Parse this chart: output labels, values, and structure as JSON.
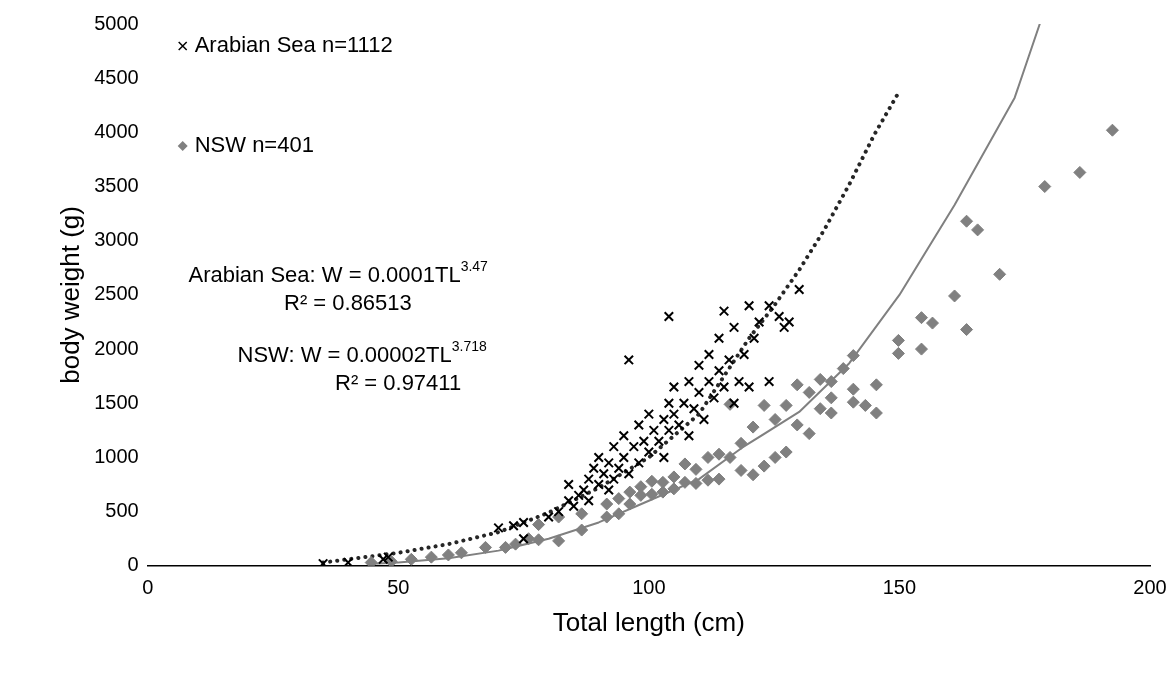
{
  "chart_data": {
    "type": "scatter",
    "xlabel": "Total length (cm)",
    "ylabel": "body weight (g)",
    "xlim": [
      0,
      200
    ],
    "xticks": [
      0,
      50,
      100,
      150,
      200
    ],
    "ylim": [
      0,
      5000
    ],
    "yticks": [
      0,
      500,
      1000,
      1500,
      2000,
      2500,
      3000,
      3500,
      4000,
      4500,
      5000
    ],
    "grid": false,
    "legend": "top left",
    "annotations": [
      "Arabian Sea: W = 0.0001TL$^{3.47}$",
      "R² = 0.86513",
      "NSW: W = 0.00002TL$^{3.718}$",
      "R² = 0.97411"
    ],
    "series": [
      {
        "name": "Arabian Sea n=1112",
        "marker": "cross",
        "color": "#000000",
        "x": [
          35,
          40,
          47,
          48,
          70,
          73,
          75,
          75,
          80,
          82,
          84,
          84,
          85,
          86,
          87,
          88,
          88,
          89,
          90,
          90,
          91,
          92,
          92,
          93,
          93,
          94,
          95,
          95,
          96,
          96,
          97,
          98,
          98,
          99,
          100,
          100,
          101,
          102,
          103,
          103,
          104,
          104,
          105,
          105,
          106,
          107,
          104,
          108,
          108,
          109,
          110,
          110,
          111,
          112,
          112,
          113,
          114,
          114,
          115,
          115,
          116,
          117,
          117,
          118,
          119,
          120,
          120,
          121,
          122,
          124,
          124,
          126,
          127,
          128,
          130
        ],
        "values": [
          20,
          30,
          60,
          80,
          350,
          370,
          400,
          250,
          450,
          500,
          600,
          750,
          550,
          650,
          700,
          800,
          600,
          900,
          750,
          1000,
          850,
          950,
          700,
          1100,
          800,
          900,
          1000,
          1200,
          1900,
          850,
          1100,
          950,
          1300,
          1150,
          1050,
          1400,
          1250,
          1150,
          1350,
          1000,
          1500,
          1250,
          1400,
          1650,
          1300,
          1500,
          2300,
          1200,
          1700,
          1450,
          1600,
          1850,
          1350,
          1700,
          1950,
          1550,
          1800,
          2100,
          1650,
          2350,
          1900,
          1500,
          2200,
          1700,
          1950,
          2400,
          1650,
          2100,
          2250,
          2400,
          1700,
          2300,
          2200,
          2250,
          2550
        ]
      },
      {
        "name": "NSW n=401",
        "marker": "diamond",
        "color": "#808080",
        "x": [
          44.6,
          48.6,
          52.6,
          56.6,
          60,
          62.6,
          67.4,
          71.4,
          73.4,
          76,
          78,
          78,
          82,
          82,
          86.6,
          86.6,
          91.6,
          91.6,
          94,
          94,
          96.2,
          96.2,
          98.4,
          98.4,
          100.6,
          100.6,
          102.8,
          102.8,
          105,
          105,
          107.2,
          107.2,
          109.4,
          109.4,
          111.8,
          111.8,
          114,
          114,
          116.2,
          116.2,
          118.4,
          118.4,
          120.8,
          120.8,
          123,
          123,
          125.2,
          125.2,
          127.4,
          127.4,
          129.6,
          129.6,
          132,
          132,
          134.2,
          134.2,
          136.4,
          136.4,
          136.4,
          138.8,
          140.8,
          140.8,
          140.8,
          143.2,
          145.4,
          145.4,
          149.8,
          149.8,
          154.4,
          154.4,
          156.6,
          161,
          163.4,
          163.4,
          165.6,
          170,
          179,
          186,
          192.5
        ],
        "values": [
          30,
          40,
          60,
          80,
          100,
          120,
          170,
          170,
          200,
          250,
          380,
          240,
          450,
          230,
          480,
          330,
          570,
          450,
          620,
          480,
          680,
          570,
          730,
          650,
          780,
          660,
          770,
          680,
          820,
          710,
          940,
          770,
          890,
          760,
          1000,
          790,
          1030,
          800,
          1490,
          1000,
          1130,
          880,
          1280,
          840,
          1480,
          920,
          1350,
          1000,
          1480,
          1050,
          1670,
          1300,
          1600,
          1220,
          1720,
          1450,
          1700,
          1550,
          1410,
          1820,
          1940,
          1630,
          1510,
          1480,
          1670,
          1410,
          2080,
          1960,
          2290,
          2000,
          2240,
          2490,
          3180,
          2180,
          3100,
          2690,
          3500,
          3630,
          4020
        ]
      },
      {
        "type": "line",
        "marker": "none",
        "line_style": "dotted",
        "color": "#262626",
        "x": [
          35,
          50,
          60,
          70,
          80,
          90,
          100,
          110,
          120,
          125,
          130,
          135,
          140,
          145,
          150
        ],
        "values": [
          30,
          120,
          200,
          310,
          490,
          720,
          1000,
          1400,
          2100,
          2400,
          2730,
          3100,
          3520,
          3980,
          4380
        ]
      },
      {
        "type": "line",
        "marker": "none",
        "line_style": "solid",
        "color": "#808080",
        "x": [
          45,
          50,
          60,
          70,
          80,
          90,
          97,
          100,
          110,
          118.6,
          130,
          140,
          150,
          161,
          173,
          178
        ],
        "values": [
          20,
          30,
          70,
          140,
          250,
          400,
          540,
          600,
          800,
          1090,
          1420,
          1870,
          2500,
          3330,
          4320,
          5000
        ]
      }
    ]
  }
}
